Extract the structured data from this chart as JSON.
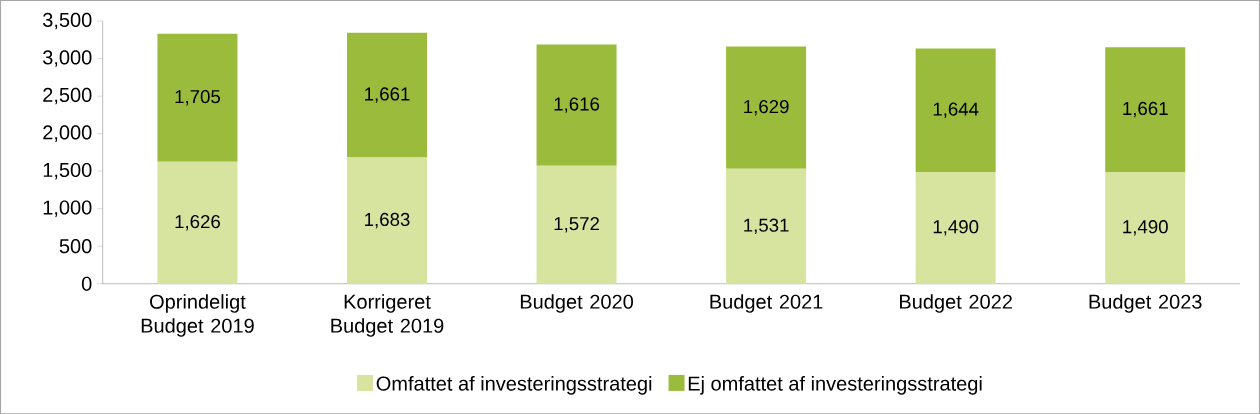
{
  "chart_data": {
    "type": "bar",
    "stacked": true,
    "categories": [
      "Oprindeligt Budget 2019",
      "Korrigeret Budget 2019",
      "Budget 2020",
      "Budget 2021",
      "Budget 2022",
      "Budget 2023"
    ],
    "series": [
      {
        "name": "Omfattet af investeringsstrategi",
        "color": "#d7e4a0",
        "values": [
          1626,
          1683,
          1572,
          1531,
          1490,
          1490
        ],
        "value_labels": [
          "1,626",
          "1,683",
          "1,572",
          "1,531",
          "1,490",
          "1,490"
        ]
      },
      {
        "name": "Ej omfattet af investeringsstrategi",
        "color": "#9bbb3c",
        "values": [
          1705,
          1661,
          1616,
          1629,
          1644,
          1661
        ],
        "value_labels": [
          "1,705",
          "1,661",
          "1,616",
          "1,629",
          "1,644",
          "1,661"
        ]
      }
    ],
    "ylim": [
      0,
      3500
    ],
    "yticks": [
      {
        "value": 0,
        "label": "0"
      },
      {
        "value": 500,
        "label": "500"
      },
      {
        "value": 1000,
        "label": "1,000"
      },
      {
        "value": 1500,
        "label": "1,500"
      },
      {
        "value": 2000,
        "label": "2,000"
      },
      {
        "value": 2500,
        "label": "2,500"
      },
      {
        "value": 3000,
        "label": "3,000"
      },
      {
        "value": 3500,
        "label": "3,500"
      }
    ],
    "grid": false,
    "legend": "bottom"
  }
}
